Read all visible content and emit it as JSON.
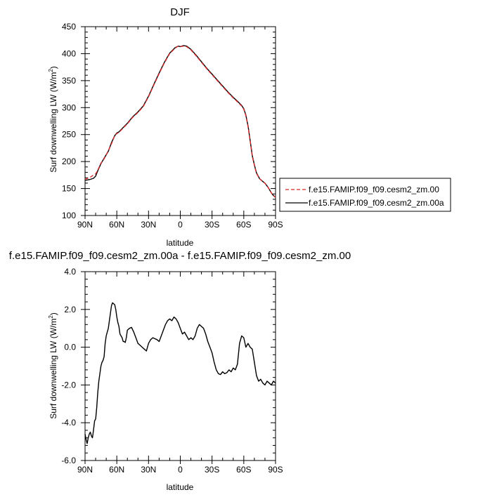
{
  "chart_data": [
    {
      "type": "line",
      "title": "DJF",
      "xlabel": "latitude",
      "ylabel": "Surf downwelling LW (W/m²)",
      "ylabel_main": "Surf downwelling LW (W/m",
      "ylabel_sup": "2",
      "ylabel_end": ")",
      "xlim": [
        90,
        -90
      ],
      "ylim": [
        100,
        450
      ],
      "x_ticks": [
        90,
        60,
        30,
        0,
        -30,
        -60,
        -90
      ],
      "x_tick_labels": [
        "90N",
        "60N",
        "30N",
        "0",
        "30S",
        "60S",
        "90S"
      ],
      "y_ticks": [
        100,
        150,
        200,
        250,
        300,
        350,
        400,
        450
      ],
      "y_tick_labels": [
        "100",
        "150",
        "200",
        "250",
        "300",
        "350",
        "400",
        "450"
      ],
      "legend": {
        "position": "right",
        "entries": [
          {
            "label": "f.e15.FAMIP.f09_f09.cesm2_zm.00",
            "color": "#d62728",
            "dash": "dashed"
          },
          {
            "label": "f.e15.FAMIP.f09_f09.cesm2_zm.00a",
            "color": "#000000",
            "dash": "solid"
          }
        ]
      },
      "series": [
        {
          "name": "f.e15.FAMIP.f09_f09.cesm2_zm.00",
          "color": "#d62728",
          "x": [
            90,
            85,
            82,
            80,
            78,
            75,
            72,
            68,
            65,
            62,
            60,
            58,
            55,
            50,
            45,
            40,
            35,
            30,
            25,
            20,
            15,
            10,
            5,
            2,
            0,
            -3,
            -6,
            -10,
            -15,
            -20,
            -25,
            -30,
            -35,
            -40,
            -45,
            -50,
            -55,
            -58,
            -60,
            -62,
            -64,
            -66,
            -68,
            -70,
            -72,
            -75,
            -78,
            -80,
            -83,
            -86,
            -88,
            -90
          ],
          "y": [
            167,
            171,
            175,
            177,
            184,
            197,
            205,
            220,
            233,
            248,
            252,
            254,
            260,
            270,
            282,
            291,
            302,
            320,
            342,
            363,
            383,
            400,
            410,
            414,
            413,
            414,
            413,
            407,
            396,
            384,
            372,
            361,
            350,
            339,
            328,
            318,
            309,
            303,
            297,
            285,
            265,
            238,
            210,
            193,
            178,
            168,
            163,
            160,
            152,
            142,
            137,
            134
          ]
        },
        {
          "name": "f.e15.FAMIP.f09_f09.cesm2_zm.00a",
          "color": "#000000",
          "x": [
            90,
            85,
            82,
            80,
            78,
            75,
            72,
            68,
            65,
            62,
            60,
            58,
            55,
            50,
            45,
            40,
            35,
            30,
            25,
            20,
            15,
            10,
            5,
            2,
            0,
            -3,
            -6,
            -10,
            -15,
            -20,
            -25,
            -30,
            -35,
            -40,
            -45,
            -50,
            -55,
            -58,
            -60,
            -62,
            -64,
            -66,
            -68,
            -70,
            -72,
            -75,
            -78,
            -80,
            -83,
            -86,
            -88,
            -90
          ],
          "y": [
            165,
            167,
            169,
            173,
            183,
            196,
            206,
            219,
            235,
            248,
            253,
            255,
            261,
            271,
            283,
            292,
            303,
            321,
            343,
            364,
            384,
            401,
            411,
            414,
            413,
            415,
            414,
            408,
            397,
            385,
            373,
            362,
            351,
            340,
            329,
            319,
            310,
            304,
            298,
            286,
            266,
            239,
            211,
            194,
            179,
            168,
            163,
            160,
            152,
            142,
            137,
            134
          ]
        }
      ]
    },
    {
      "type": "line",
      "title": "f.e15.FAMIP.f09_f09.cesm2_zm.00a - f.e15.FAMIP.f09_f09.cesm2_zm.00",
      "xlabel": "latitude",
      "ylabel": "Surf downwelling LW (W/m²)",
      "ylabel_main": "Surf downwelling LW (W/m",
      "ylabel_sup": "2",
      "ylabel_end": ")",
      "xlim": [
        90,
        -90
      ],
      "ylim": [
        -6,
        4
      ],
      "x_ticks": [
        90,
        60,
        30,
        0,
        -30,
        -60,
        -90
      ],
      "x_tick_labels": [
        "90N",
        "60N",
        "30N",
        "0",
        "30S",
        "60S",
        "90S"
      ],
      "y_ticks": [
        -6,
        -4,
        -2,
        0,
        2,
        4
      ],
      "y_tick_labels": [
        "-6.0",
        "-4.0",
        "-2.0",
        "0.0",
        "2.0",
        "4.0"
      ],
      "series": [
        {
          "color": "#000000",
          "x": [
            90,
            89,
            88,
            87,
            86,
            85,
            84,
            83,
            82,
            81,
            80,
            79,
            78,
            77,
            76,
            75,
            74,
            73,
            72,
            71,
            70,
            69,
            68,
            67,
            66,
            65,
            64,
            63,
            62,
            61,
            60,
            59,
            58,
            57,
            56,
            55,
            54,
            53,
            52,
            51,
            50,
            48,
            46,
            44,
            42,
            40,
            38,
            36,
            34,
            32,
            30,
            28,
            26,
            24,
            22,
            20,
            18,
            16,
            14,
            12,
            10,
            8,
            6,
            4,
            2,
            0,
            -2,
            -4,
            -6,
            -8,
            -10,
            -12,
            -14,
            -16,
            -18,
            -20,
            -22,
            -24,
            -26,
            -28,
            -30,
            -32,
            -34,
            -36,
            -38,
            -40,
            -42,
            -44,
            -46,
            -48,
            -50,
            -52,
            -54,
            -56,
            -58,
            -60,
            -62,
            -64,
            -66,
            -68,
            -70,
            -72,
            -74,
            -76,
            -78,
            -80,
            -82,
            -84,
            -86,
            -88,
            -90
          ],
          "y": [
            -4.6,
            -4.9,
            -5.1,
            -4.8,
            -4.6,
            -4.5,
            -4.7,
            -4.8,
            -4.4,
            -3.9,
            -3.8,
            -3.2,
            -2.4,
            -1.8,
            -1.4,
            -1.0,
            -0.8,
            -0.7,
            -0.5,
            0.2,
            0.6,
            0.8,
            1.0,
            1.4,
            1.8,
            2.2,
            2.35,
            2.3,
            2.25,
            2.0,
            1.6,
            1.3,
            1.1,
            0.7,
            0.6,
            0.5,
            0.3,
            0.3,
            0.25,
            0.5,
            0.9,
            1.0,
            1.05,
            0.8,
            0.5,
            0.2,
            0.1,
            0.0,
            -0.1,
            -0.2,
            0.2,
            0.4,
            0.5,
            0.45,
            0.4,
            0.3,
            0.6,
            0.9,
            1.2,
            1.4,
            1.5,
            1.4,
            1.6,
            1.5,
            1.3,
            1.0,
            0.7,
            0.8,
            0.6,
            0.4,
            0.5,
            0.4,
            0.6,
            1.0,
            1.2,
            1.1,
            1.0,
            0.7,
            0.3,
            0.0,
            -0.3,
            -0.8,
            -1.2,
            -1.4,
            -1.45,
            -1.3,
            -1.4,
            -1.35,
            -1.2,
            -1.3,
            -1.1,
            -1.2,
            -0.9,
            0.2,
            0.6,
            0.5,
            0.0,
            0.2,
            0.0,
            -0.1,
            -0.8,
            -1.5,
            -1.8,
            -1.7,
            -1.9,
            -2.0,
            -1.8,
            -1.9,
            -2.0,
            -1.8,
            -1.9
          ]
        }
      ]
    }
  ]
}
